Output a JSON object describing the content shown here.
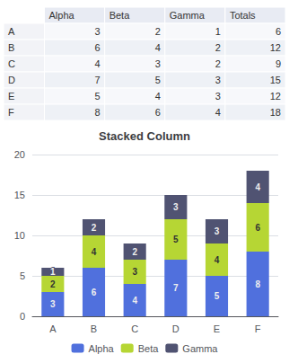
{
  "chart_data": [
    {
      "type": "table",
      "categories": [
        "A",
        "B",
        "C",
        "D",
        "E",
        "F"
      ],
      "series": [
        {
          "name": "Alpha",
          "values": [
            3,
            6,
            4,
            7,
            5,
            8
          ]
        },
        {
          "name": "Beta",
          "values": [
            2,
            4,
            3,
            5,
            4,
            6
          ]
        },
        {
          "name": "Gamma",
          "values": [
            1,
            2,
            2,
            3,
            3,
            4
          ]
        },
        {
          "name": "Totals",
          "values": [
            6,
            12,
            9,
            15,
            12,
            18
          ]
        }
      ]
    },
    {
      "type": "bar",
      "title": "Stacked Column",
      "categories": [
        "A",
        "B",
        "C",
        "D",
        "E",
        "F"
      ],
      "series": [
        {
          "name": "Alpha",
          "values": [
            3,
            6,
            4,
            7,
            5,
            8
          ]
        },
        {
          "name": "Beta",
          "values": [
            2,
            4,
            3,
            5,
            4,
            6
          ]
        },
        {
          "name": "Gamma",
          "values": [
            1,
            2,
            2,
            3,
            3,
            4
          ]
        }
      ],
      "stacked": true,
      "data_labels": true,
      "ylim": [
        0,
        20
      ],
      "yticks": [
        0,
        5,
        10,
        15,
        20
      ],
      "grid": true,
      "legend": "bottom"
    }
  ]
}
